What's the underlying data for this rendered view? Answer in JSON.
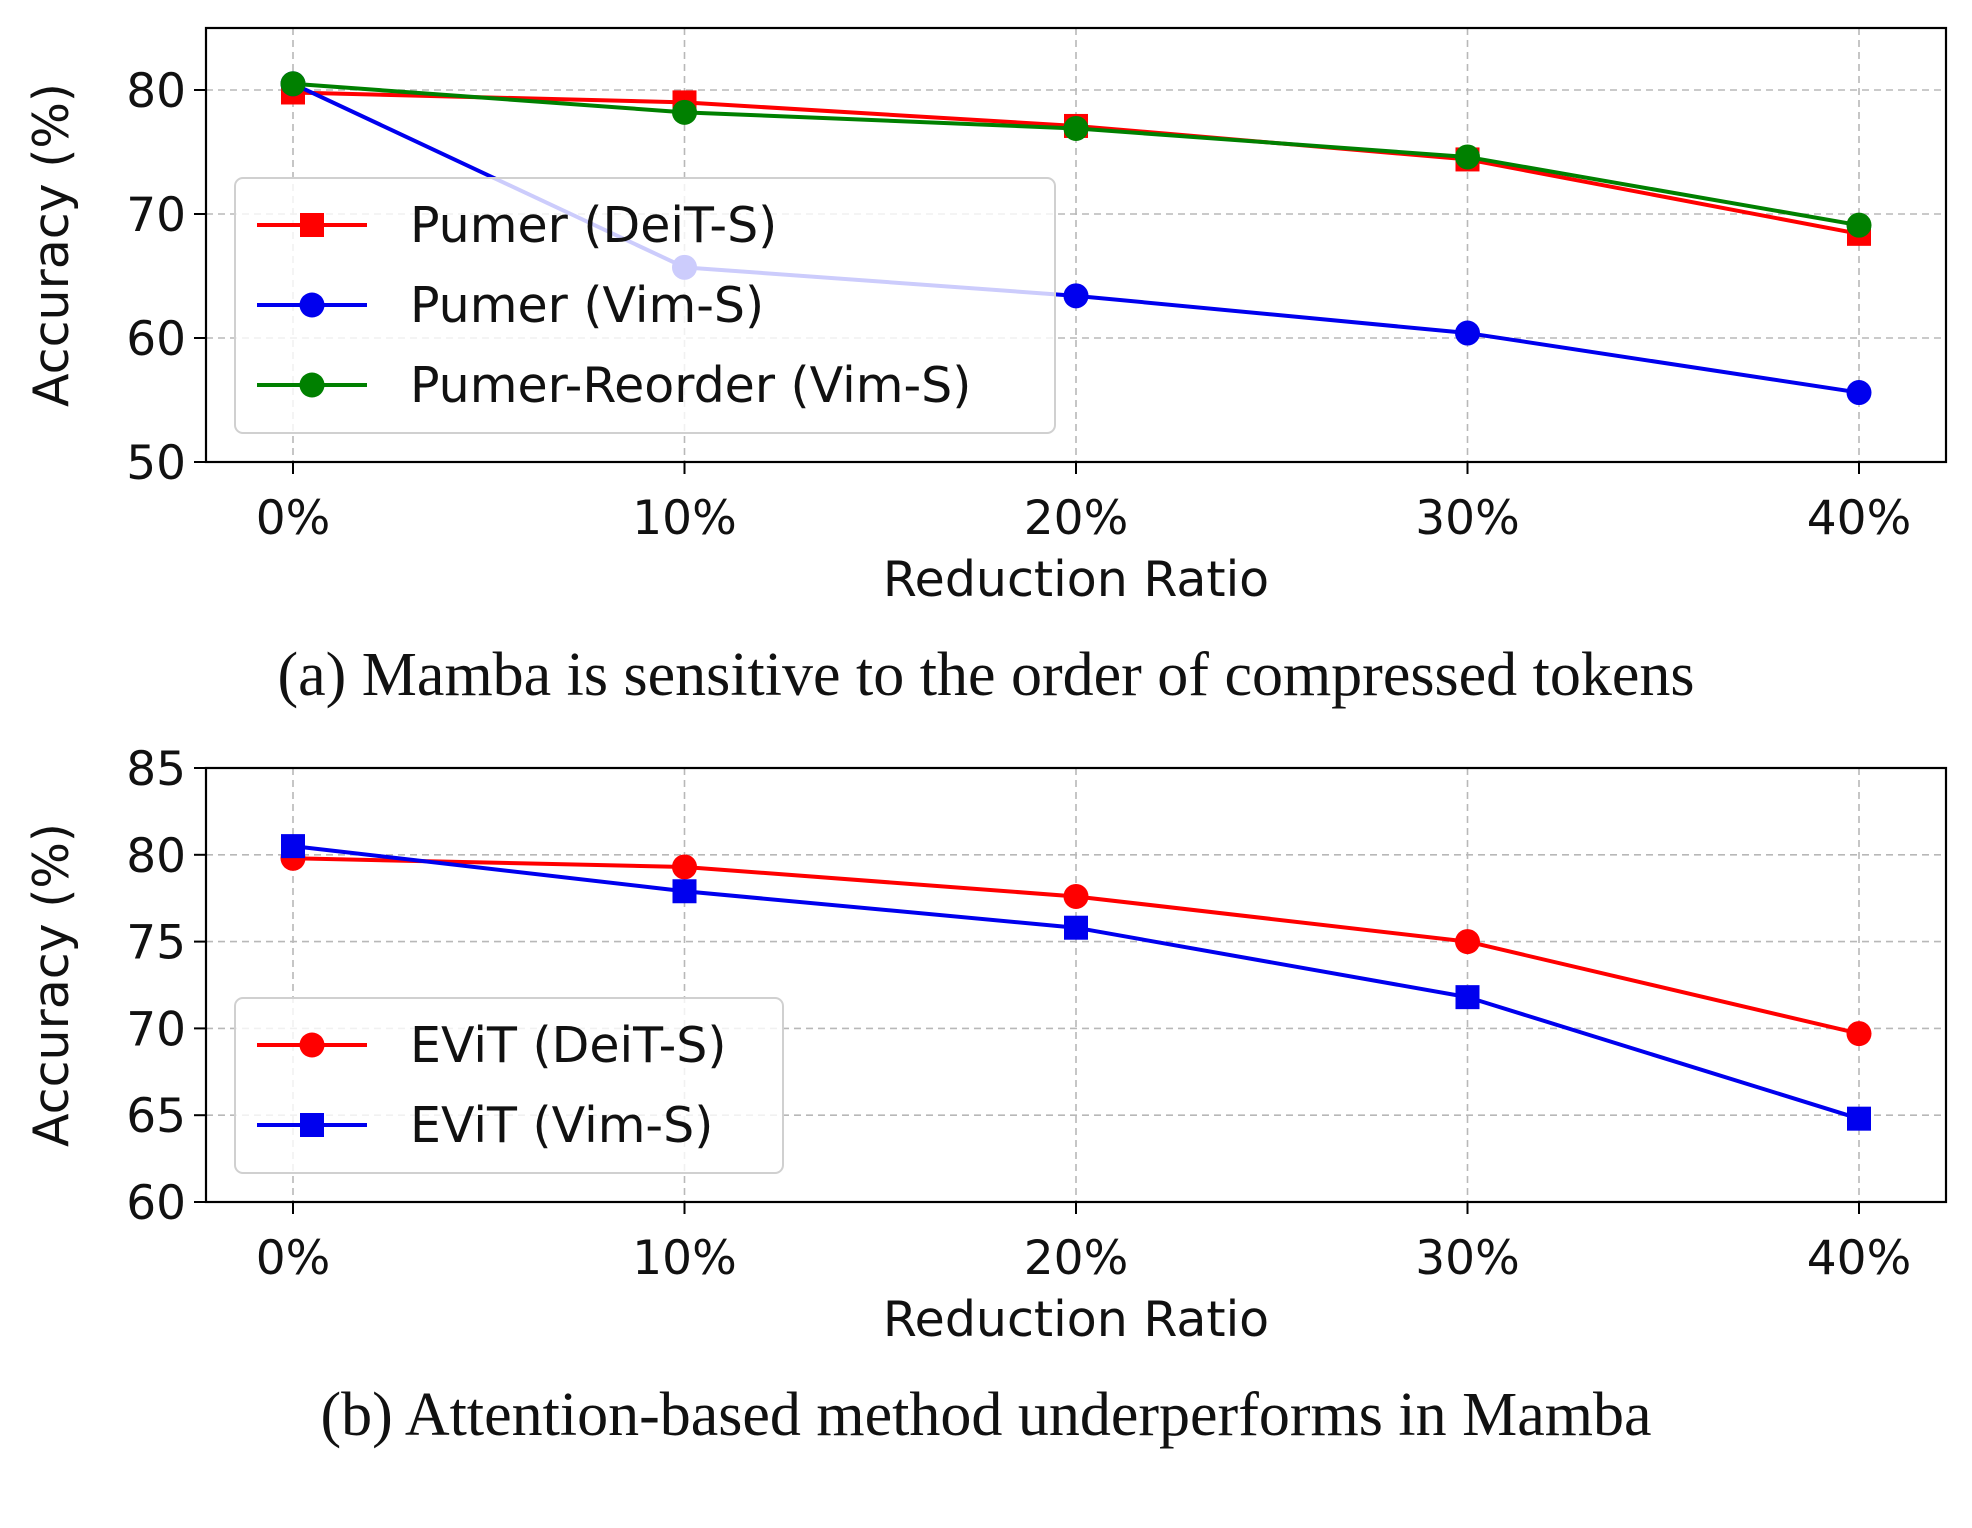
{
  "chart_data": [
    {
      "type": "line",
      "caption": "(a) Mamba is sensitive to the order of compressed tokens",
      "xlabel": "Reduction Ratio",
      "ylabel": "Accuracy (%)",
      "categories": [
        "0%",
        "10%",
        "20%",
        "30%",
        "40%"
      ],
      "ylim": [
        50,
        85
      ],
      "yticks": [
        50,
        60,
        70,
        80
      ],
      "grid": true,
      "legend_position": "lower-left",
      "series": [
        {
          "name": "Pumer (DeiT-S)",
          "color": "#ff0000",
          "marker": "square",
          "values": [
            79.8,
            79.0,
            77.1,
            74.4,
            68.4
          ]
        },
        {
          "name": "Pumer (Vim-S)",
          "color": "#0000ee",
          "marker": "circle",
          "values": [
            80.5,
            65.7,
            63.4,
            60.4,
            55.6
          ]
        },
        {
          "name": "Pumer-Reorder (Vim-S)",
          "color": "#008000",
          "marker": "circle",
          "values": [
            80.5,
            78.2,
            76.9,
            74.6,
            69.1
          ]
        }
      ]
    },
    {
      "type": "line",
      "caption": "(b) Attention-based method underperforms in Mamba",
      "xlabel": "Reduction Ratio",
      "ylabel": "Accuracy (%)",
      "categories": [
        "0%",
        "10%",
        "20%",
        "30%",
        "40%"
      ],
      "ylim": [
        60,
        85
      ],
      "yticks": [
        60,
        65,
        70,
        75,
        80,
        85
      ],
      "grid": true,
      "legend_position": "lower-left",
      "series": [
        {
          "name": "EViT (DeiT-S)",
          "color": "#ff0000",
          "marker": "circle",
          "values": [
            79.8,
            79.3,
            77.6,
            75.0,
            69.7
          ]
        },
        {
          "name": "EViT (Vim-S)",
          "color": "#0000ee",
          "marker": "square",
          "values": [
            80.5,
            77.9,
            75.8,
            71.8,
            64.8
          ]
        }
      ]
    }
  ]
}
